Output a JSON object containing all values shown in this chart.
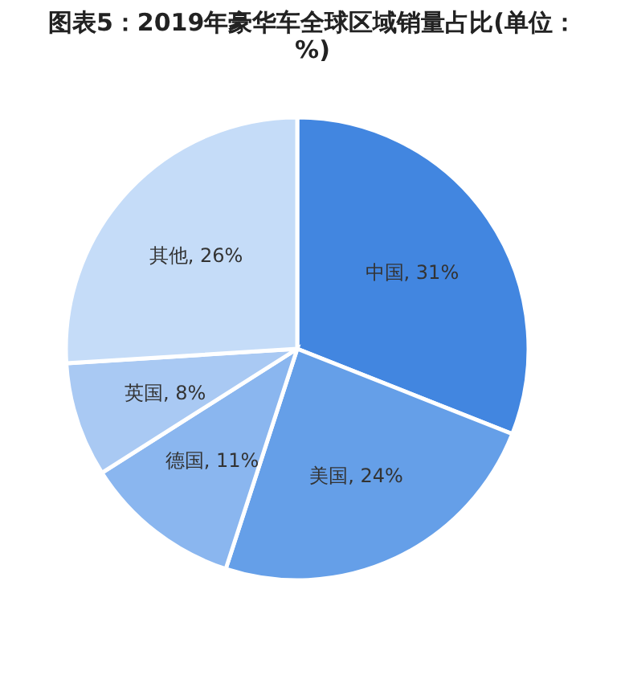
{
  "chart_data": {
    "type": "pie",
    "title": "图表5：2019年豪华车全球区域销量占比(单位：%)",
    "categories": [
      "中国",
      "美国",
      "德国",
      "英国",
      "其他"
    ],
    "values": [
      31,
      24,
      11,
      8,
      26
    ],
    "value_labels": [
      "31%",
      "24%",
      "11%",
      "8%",
      "26%"
    ],
    "colors": [
      "#4286e0",
      "#659fe8",
      "#8ab6ef",
      "#a9c9f3",
      "#c5dcf8"
    ],
    "legend": false
  }
}
